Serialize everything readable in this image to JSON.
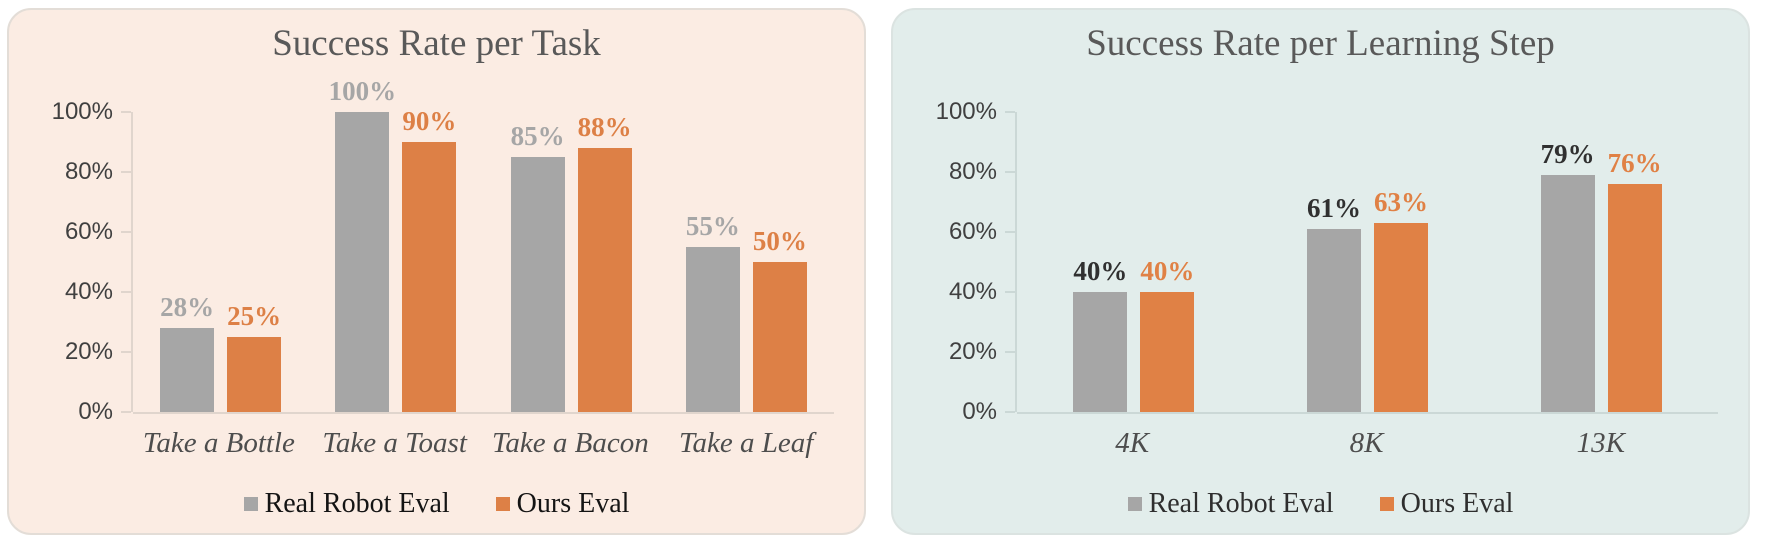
{
  "chart_data": [
    {
      "type": "bar",
      "title": "Success Rate per Task",
      "categories": [
        "Take a Bottle",
        "Take a Toast",
        "Take a Bacon",
        "Take a Leaf"
      ],
      "series": [
        {
          "name": "Real Robot Eval",
          "values": [
            28,
            100,
            85,
            55
          ],
          "color": "#a6a6a6",
          "data_label_color": "#a6a6a6"
        },
        {
          "name": "Ours Eval",
          "values": [
            25,
            90,
            88,
            50
          ],
          "color": "#dd8046",
          "data_label_color": "#dd8046"
        }
      ],
      "value_suffix": "%",
      "y_ticks": [
        "0%",
        "20%",
        "40%",
        "60%",
        "80%",
        "100%"
      ],
      "ylim": [
        0,
        100
      ],
      "grid": false,
      "legend_position": "bottom",
      "style": {
        "panel_bg": "#fbece3",
        "panel_border": "#e3ddd7",
        "axis_color": "#e0d5cd",
        "tick_label_color": "#404040",
        "title_color": "#595959",
        "category_color": "#4d4d4d",
        "legend_text_color": "#141414"
      }
    },
    {
      "type": "bar",
      "title": "Success Rate per Learning Step",
      "categories": [
        "4K",
        "8K",
        "13K"
      ],
      "series": [
        {
          "name": "Real Robot Eval",
          "values": [
            40,
            61,
            79
          ],
          "color": "#a6a6a6",
          "data_label_color": "#303030"
        },
        {
          "name": "Ours Eval",
          "values": [
            40,
            63,
            76
          ],
          "color": "#e08145",
          "data_label_color": "#e08145"
        }
      ],
      "value_suffix": "%",
      "y_ticks": [
        "0%",
        "20%",
        "40%",
        "60%",
        "80%",
        "100%"
      ],
      "ylim": [
        0,
        100
      ],
      "grid": false,
      "legend_position": "bottom",
      "style": {
        "panel_bg": "#e2edeb",
        "panel_border": "#dbe3e1",
        "axis_color": "#cbd8d6",
        "tick_label_color": "#404040",
        "title_color": "#595959",
        "category_color": "#4d4d4d",
        "legend_text_color": "#2e2e2e"
      }
    }
  ]
}
